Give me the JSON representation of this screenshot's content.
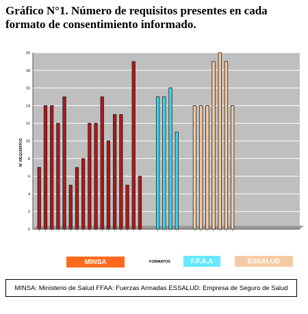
{
  "title": "Gráfico N°1. Número de requisitos presentes en cada formato de consentimiento informado.",
  "footer": "MINSA: Ministerio de Salud   FFAA: Fuerzas Armadas   ESSALUD: Empresa de Seguro de Salud",
  "colors": {
    "minsa": "#b01818",
    "ffaa": "#33d9ee",
    "essalud": "#f5c8a0",
    "plot_bg": "#bfbfbf",
    "grid": "#ffffff"
  },
  "chart_data": {
    "type": "bar",
    "xlabel": "FORMATOS",
    "ylabel": "N° REQUISITOS",
    "ylim": [
      0,
      20
    ],
    "yticks": [
      0,
      2,
      4,
      6,
      8,
      10,
      12,
      14,
      16,
      18,
      20
    ],
    "grid": true,
    "groups": [
      {
        "name": "MINSA",
        "color": "#b01818",
        "values": [
          7,
          14,
          14,
          12,
          15,
          5,
          7,
          8,
          12,
          12,
          15,
          10,
          13,
          13,
          5,
          19,
          6
        ]
      },
      {
        "name": "F.F.A.A",
        "color": "#33d9ee",
        "values": [
          15,
          15,
          16,
          11
        ]
      },
      {
        "name": "ESSALUD",
        "color": "#f5c8a0",
        "values": [
          14,
          14,
          14,
          19,
          20,
          19,
          14
        ]
      }
    ]
  }
}
